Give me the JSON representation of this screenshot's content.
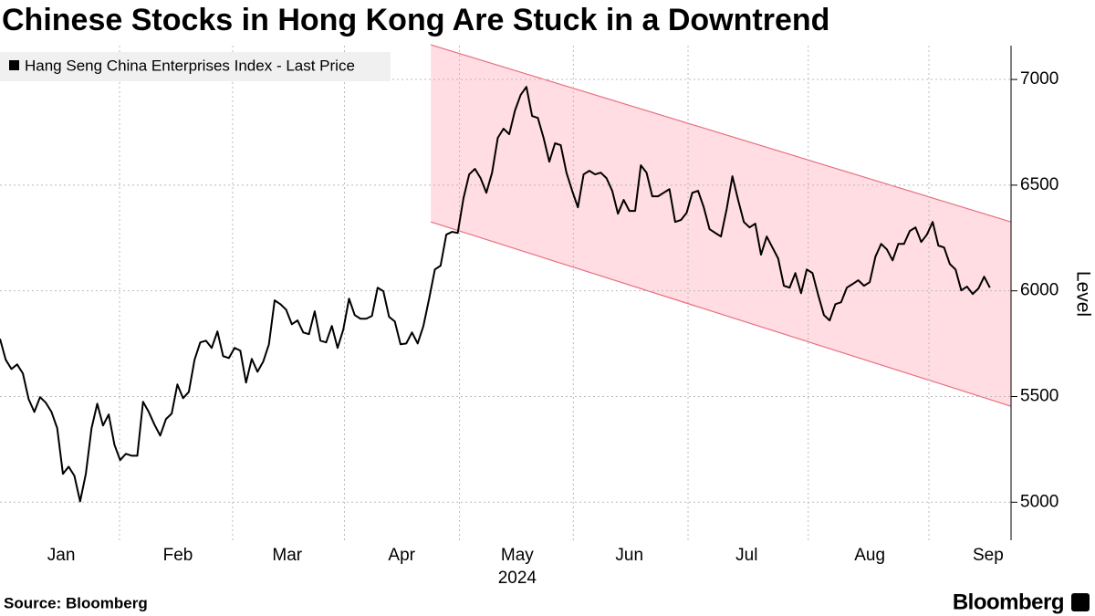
{
  "chart_data": {
    "type": "line",
    "title": "Chinese Stocks in Hong Kong Are Stuck in a Downtrend",
    "series": [
      {
        "name": "Hang Seng China Enterprises Index - Last Price",
        "color": "#000000",
        "values": [
          5773,
          5674,
          5630,
          5652,
          5609,
          5488,
          5427,
          5497,
          5471,
          5427,
          5350,
          5134,
          5168,
          5125,
          5004,
          5134,
          5350,
          5466,
          5363,
          5415,
          5272,
          5199,
          5229,
          5220,
          5220,
          5475,
          5427,
          5367,
          5315,
          5393,
          5419,
          5557,
          5492,
          5522,
          5674,
          5756,
          5764,
          5730,
          5808,
          5691,
          5682,
          5730,
          5717,
          5566,
          5678,
          5617,
          5665,
          5747,
          5955,
          5937,
          5911,
          5842,
          5860,
          5803,
          5795,
          5903,
          5764,
          5756,
          5834,
          5730,
          5817,
          5963,
          5885,
          5868,
          5868,
          5881,
          6015,
          5998,
          5877,
          5855,
          5747,
          5751,
          5803,
          5751,
          5834,
          5963,
          6101,
          6119,
          6266,
          6279,
          6274,
          6438,
          6551,
          6577,
          6533,
          6464,
          6559,
          6724,
          6767,
          6741,
          6853,
          6927,
          6965,
          6827,
          6818,
          6724,
          6611,
          6698,
          6689,
          6559,
          6473,
          6395,
          6551,
          6568,
          6551,
          6559,
          6533,
          6473,
          6365,
          6430,
          6378,
          6378,
          6594,
          6559,
          6447,
          6447,
          6464,
          6481,
          6326,
          6335,
          6369,
          6464,
          6473,
          6395,
          6292,
          6274,
          6257,
          6387,
          6542,
          6430,
          6326,
          6300,
          6318,
          6171,
          6257,
          6205,
          6153,
          6024,
          6015,
          6084,
          5989,
          6101,
          6084,
          5980,
          5885,
          5860,
          5937,
          5946,
          6015,
          6032,
          6050,
          6024,
          6041,
          6162,
          6222,
          6196,
          6144,
          6222,
          6222,
          6283,
          6300,
          6231,
          6266,
          6326,
          6214,
          6205,
          6127,
          6101,
          6002,
          6020,
          5985,
          6011,
          6067,
          6015
        ]
      }
    ],
    "xlim": [
      0,
      176.7
    ],
    "xticks": [
      {
        "value": 10.7,
        "label": "Jan"
      },
      {
        "value": 31.1,
        "label": "Feb"
      },
      {
        "value": 50.2,
        "label": "Mar"
      },
      {
        "value": 70.2,
        "label": "Apr"
      },
      {
        "value": 90.4,
        "label": "May"
      },
      {
        "value": 110,
        "label": "Jun"
      },
      {
        "value": 130.5,
        "label": "Jul"
      },
      {
        "value": 152,
        "label": "Aug"
      },
      {
        "value": 172.7,
        "label": "Sep"
      }
    ],
    "year_label": "2024",
    "ylim": [
      4820,
      7160
    ],
    "yticks": [
      5000,
      5500,
      6000,
      6500,
      7000
    ],
    "y_label": "Level",
    "grid": true,
    "channel": {
      "x": [
        75.3,
        176.7
      ],
      "upper": [
        7164,
        6326
      ],
      "lower": [
        6326,
        5454
      ],
      "color": "#ffdde3",
      "edge_color": "#e8707f"
    },
    "source": "Source: Bloomberg",
    "brand": "Bloomberg"
  }
}
